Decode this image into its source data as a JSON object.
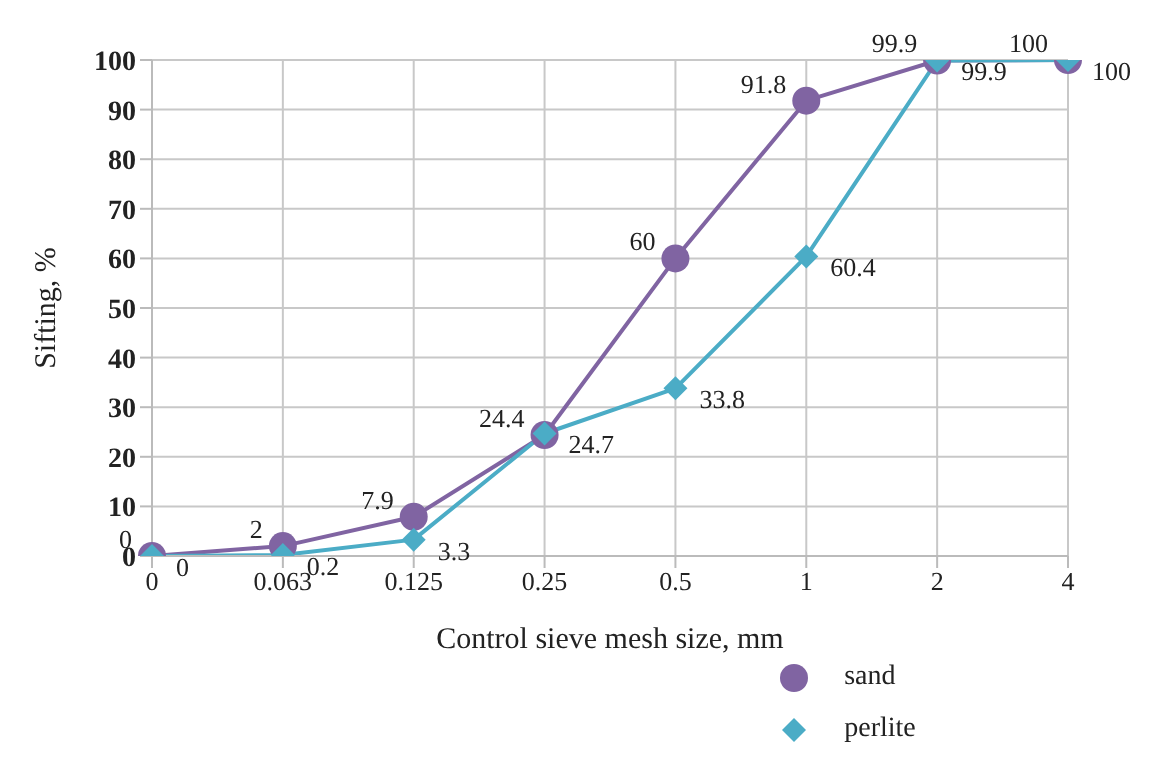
{
  "chart_data": {
    "type": "line",
    "xlabel": "Control sieve mesh size, mm",
    "ylabel": "Sifting, %",
    "categories": [
      "0",
      "0.063",
      "0.125",
      "0.25",
      "0.5",
      "1",
      "2",
      "4"
    ],
    "series": [
      {
        "name": "sand",
        "color": "#8064a2",
        "marker": "circle",
        "values": [
          0,
          2,
          7.9,
          24.4,
          60,
          91.8,
          99.9,
          100
        ]
      },
      {
        "name": "perlite",
        "color": "#4bacc6",
        "marker": "diamond",
        "values": [
          0,
          0.2,
          3.3,
          24.7,
          33.8,
          60.4,
          99.9,
          100
        ]
      }
    ],
    "ylim": [
      0,
      100
    ],
    "yticks": [
      0,
      10,
      20,
      30,
      40,
      50,
      60,
      70,
      80,
      90,
      100
    ],
    "grid": true,
    "legend": "bottom",
    "data_labels": true
  }
}
